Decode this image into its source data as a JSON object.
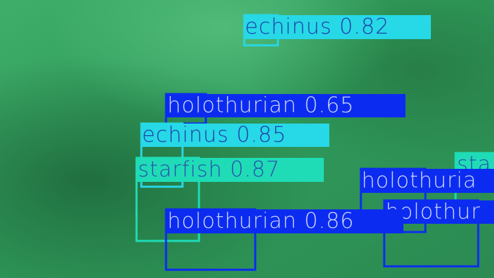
{
  "detections": [
    {
      "label": "echinus 0.82"
    },
    {
      "label": "holothurian 0.65"
    },
    {
      "label": "echinus 0.85"
    },
    {
      "label": "starfish 0.87"
    },
    {
      "label": "sta"
    },
    {
      "label": "holothuria"
    },
    {
      "label": "holothur"
    },
    {
      "label": "holothurian 0.86"
    }
  ]
}
